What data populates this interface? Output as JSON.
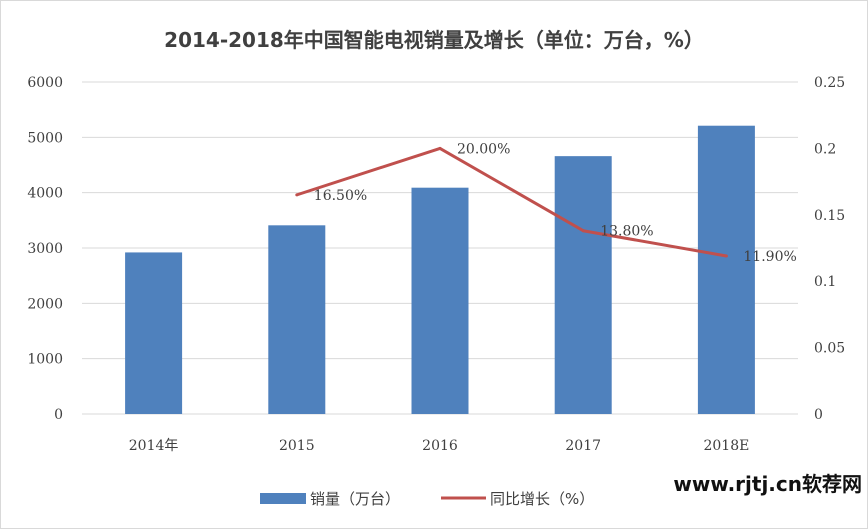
{
  "chart_data": {
    "type": "bar+line",
    "title": "2014-2018年中国智能电视销量及增长（单位：万台，%）",
    "categories": [
      "2014年",
      "2015",
      "2016",
      "2017",
      "2018E"
    ],
    "series": [
      {
        "name": "销量（万台）",
        "type": "bar",
        "axis": "left",
        "color": "#4F81BD",
        "values": [
          2920,
          3410,
          4090,
          4660,
          5210
        ]
      },
      {
        "name": "同比增长（%）",
        "type": "line",
        "axis": "right",
        "color": "#C0504D",
        "values": [
          null,
          0.165,
          0.2,
          0.138,
          0.119
        ],
        "data_labels": [
          "",
          "16.50%",
          "20.00%",
          "13.80%",
          "11.90%"
        ]
      }
    ],
    "y_left": {
      "min": 0,
      "max": 6000,
      "ticks": [
        "0",
        "1000",
        "2000",
        "3000",
        "4000",
        "5000",
        "6000"
      ]
    },
    "y_right": {
      "min": 0,
      "max": 0.25,
      "ticks": [
        "0",
        "0.05",
        "0.1",
        "0.15",
        "0.2",
        "0.25"
      ]
    },
    "grid": true,
    "legend_position": "bottom"
  },
  "watermark": "www.rjtj.cn软荐网"
}
